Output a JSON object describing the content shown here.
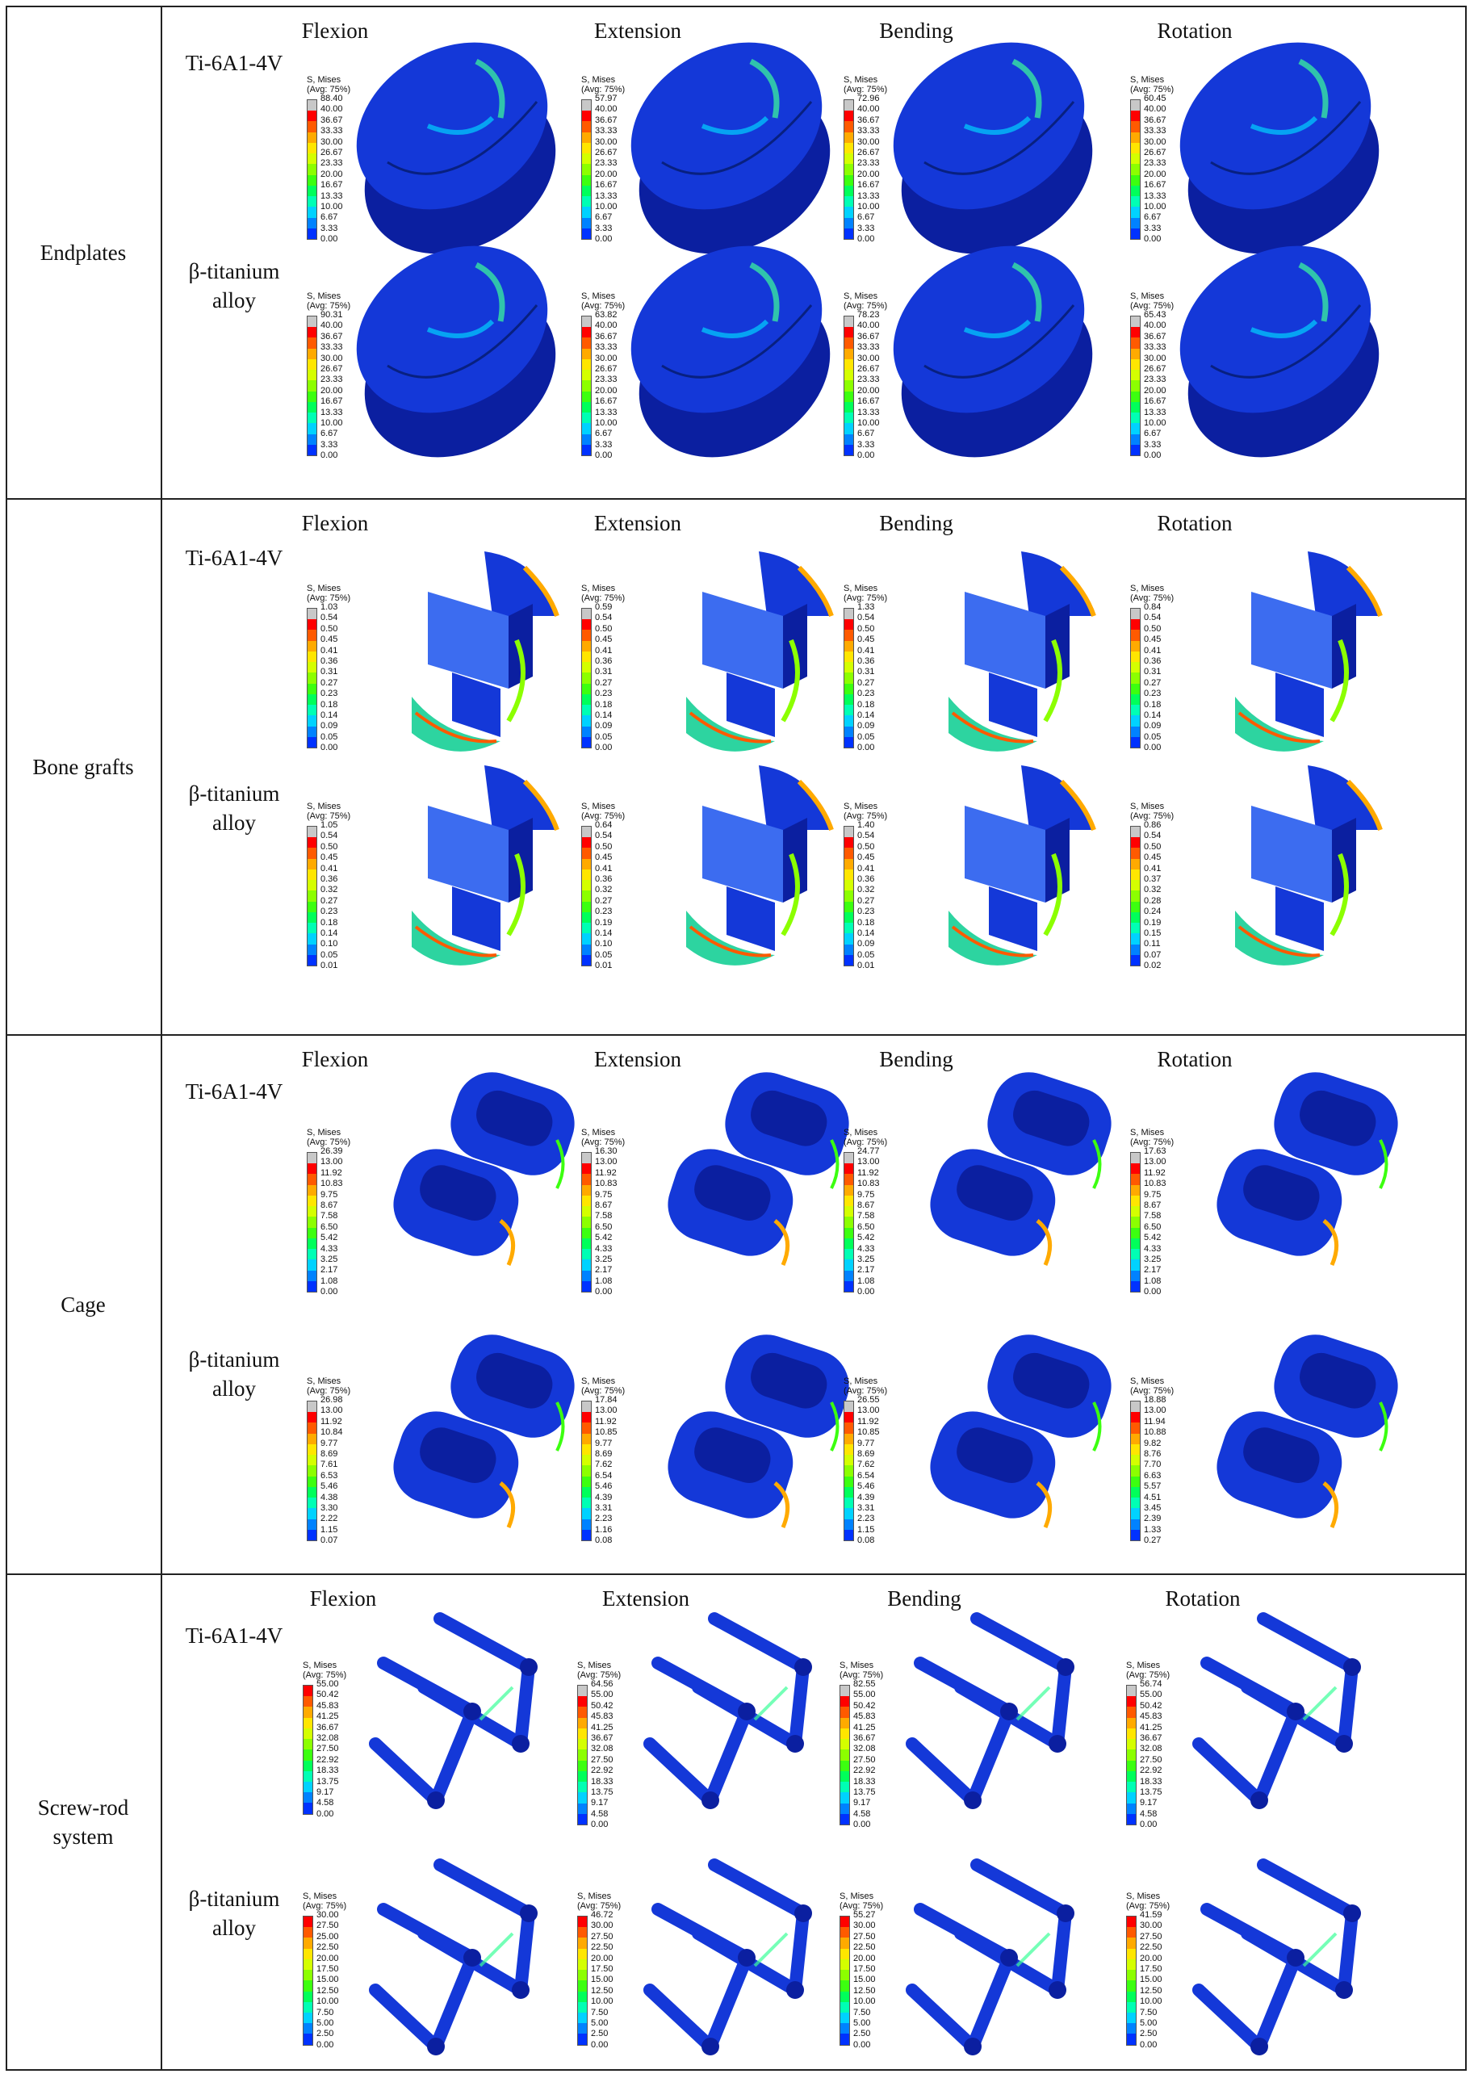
{
  "legend_title": [
    "S, Mises",
    "(Avg: 75%)"
  ],
  "columns": [
    "Flexion",
    "Extension",
    "Bending",
    "Rotation"
  ],
  "sections": [
    {
      "name": "Endplates",
      "rows": [
        {
          "material": [
            "Ti-6A1-4V"
          ],
          "scales": [
            [
              "88.40",
              "40.00",
              "36.67",
              "33.33",
              "30.00",
              "26.67",
              "23.33",
              "20.00",
              "16.67",
              "13.33",
              "10.00",
              "6.67",
              "3.33",
              "0.00"
            ],
            [
              "57.97",
              "40.00",
              "36.67",
              "33.33",
              "30.00",
              "26.67",
              "23.33",
              "20.00",
              "16.67",
              "13.33",
              "10.00",
              "6.67",
              "3.33",
              "0.00"
            ],
            [
              "72.96",
              "40.00",
              "36.67",
              "33.33",
              "30.00",
              "26.67",
              "23.33",
              "20.00",
              "16.67",
              "13.33",
              "10.00",
              "6.67",
              "3.33",
              "0.00"
            ],
            [
              "60.45",
              "40.00",
              "36.67",
              "33.33",
              "30.00",
              "26.67",
              "23.33",
              "20.00",
              "16.67",
              "13.33",
              "10.00",
              "6.67",
              "3.33",
              "0.00"
            ]
          ]
        },
        {
          "material": [
            "β-titanium",
            "alloy"
          ],
          "scales": [
            [
              "90.31",
              "40.00",
              "36.67",
              "33.33",
              "30.00",
              "26.67",
              "23.33",
              "20.00",
              "16.67",
              "13.33",
              "10.00",
              "6.67",
              "3.33",
              "0.00"
            ],
            [
              "63.82",
              "40.00",
              "36.67",
              "33.33",
              "30.00",
              "26.67",
              "23.33",
              "20.00",
              "16.67",
              "13.33",
              "10.00",
              "6.67",
              "3.33",
              "0.00"
            ],
            [
              "78.23",
              "40.00",
              "36.67",
              "33.33",
              "30.00",
              "26.67",
              "23.33",
              "20.00",
              "16.67",
              "13.33",
              "10.00",
              "6.67",
              "3.33",
              "0.00"
            ],
            [
              "65.43",
              "40.00",
              "36.67",
              "33.33",
              "30.00",
              "26.67",
              "23.33",
              "20.00",
              "16.67",
              "13.33",
              "10.00",
              "6.67",
              "3.33",
              "0.00"
            ]
          ]
        }
      ]
    },
    {
      "name": "Bone grafts",
      "rows": [
        {
          "material": [
            "Ti-6A1-4V"
          ],
          "scales": [
            [
              "1.03",
              "0.54",
              "0.50",
              "0.45",
              "0.41",
              "0.36",
              "0.31",
              "0.27",
              "0.23",
              "0.18",
              "0.14",
              "0.09",
              "0.05",
              "0.00"
            ],
            [
              "0.59",
              "0.54",
              "0.50",
              "0.45",
              "0.41",
              "0.36",
              "0.31",
              "0.27",
              "0.23",
              "0.18",
              "0.14",
              "0.09",
              "0.05",
              "0.00"
            ],
            [
              "1.33",
              "0.54",
              "0.50",
              "0.45",
              "0.41",
              "0.36",
              "0.31",
              "0.27",
              "0.23",
              "0.18",
              "0.14",
              "0.09",
              "0.05",
              "0.00"
            ],
            [
              "0.84",
              "0.54",
              "0.50",
              "0.45",
              "0.41",
              "0.36",
              "0.31",
              "0.27",
              "0.23",
              "0.18",
              "0.14",
              "0.09",
              "0.05",
              "0.00"
            ]
          ]
        },
        {
          "material": [
            "β-titanium",
            "alloy"
          ],
          "scales": [
            [
              "1.05",
              "0.54",
              "0.50",
              "0.45",
              "0.41",
              "0.36",
              "0.32",
              "0.27",
              "0.23",
              "0.18",
              "0.14",
              "0.10",
              "0.05",
              "0.01"
            ],
            [
              "0.64",
              "0.54",
              "0.50",
              "0.45",
              "0.41",
              "0.36",
              "0.32",
              "0.27",
              "0.23",
              "0.19",
              "0.14",
              "0.10",
              "0.05",
              "0.01"
            ],
            [
              "1.40",
              "0.54",
              "0.50",
              "0.45",
              "0.41",
              "0.36",
              "0.32",
              "0.27",
              "0.23",
              "0.18",
              "0.14",
              "0.09",
              "0.05",
              "0.01"
            ],
            [
              "0.86",
              "0.54",
              "0.50",
              "0.45",
              "0.41",
              "0.37",
              "0.32",
              "0.28",
              "0.24",
              "0.19",
              "0.15",
              "0.11",
              "0.07",
              "0.02"
            ]
          ]
        }
      ]
    },
    {
      "name": "Cage",
      "rows": [
        {
          "material": [
            "Ti-6A1-4V"
          ],
          "scales": [
            [
              "26.39",
              "13.00",
              "11.92",
              "10.83",
              "9.75",
              "8.67",
              "7.58",
              "6.50",
              "5.42",
              "4.33",
              "3.25",
              "2.17",
              "1.08",
              "0.00"
            ],
            [
              "16.30",
              "13.00",
              "11.92",
              "10.83",
              "9.75",
              "8.67",
              "7.58",
              "6.50",
              "5.42",
              "4.33",
              "3.25",
              "2.17",
              "1.08",
              "0.00"
            ],
            [
              "24.77",
              "13.00",
              "11.92",
              "10.83",
              "9.75",
              "8.67",
              "7.58",
              "6.50",
              "5.42",
              "4.33",
              "3.25",
              "2.17",
              "1.08",
              "0.00"
            ],
            [
              "17.63",
              "13.00",
              "11.92",
              "10.83",
              "9.75",
              "8.67",
              "7.58",
              "6.50",
              "5.42",
              "4.33",
              "3.25",
              "2.17",
              "1.08",
              "0.00"
            ]
          ]
        },
        {
          "material": [
            "β-titanium",
            "alloy"
          ],
          "scales": [
            [
              "26.98",
              "13.00",
              "11.92",
              "10.84",
              "9.77",
              "8.69",
              "7.61",
              "6.53",
              "5.46",
              "4.38",
              "3.30",
              "2.22",
              "1.15",
              "0.07"
            ],
            [
              "17.84",
              "13.00",
              "11.92",
              "10.85",
              "9.77",
              "8.69",
              "7.62",
              "6.54",
              "5.46",
              "4.39",
              "3.31",
              "2.23",
              "1.16",
              "0.08"
            ],
            [
              "26.55",
              "13.00",
              "11.92",
              "10.85",
              "9.77",
              "8.69",
              "7.62",
              "6.54",
              "5.46",
              "4.39",
              "3.31",
              "2.23",
              "1.15",
              "0.08"
            ],
            [
              "18.88",
              "13.00",
              "11.94",
              "10.88",
              "9.82",
              "8.76",
              "7.70",
              "6.63",
              "5.57",
              "4.51",
              "3.45",
              "2.39",
              "1.33",
              "0.27"
            ]
          ]
        }
      ]
    },
    {
      "name": "Screw-rod\nsystem",
      "rows": [
        {
          "material": [
            "Ti-6A1-4V"
          ],
          "scales": [
            [
              "55.00",
              "50.42",
              "45.83",
              "41.25",
              "36.67",
              "32.08",
              "27.50",
              "22.92",
              "18.33",
              "13.75",
              "9.17",
              "4.58",
              "0.00"
            ],
            [
              "64.56",
              "55.00",
              "50.42",
              "45.83",
              "41.25",
              "36.67",
              "32.08",
              "27.50",
              "22.92",
              "18.33",
              "13.75",
              "9.17",
              "4.58",
              "0.00"
            ],
            [
              "82.55",
              "55.00",
              "50.42",
              "45.83",
              "41.25",
              "36.67",
              "32.08",
              "27.50",
              "22.92",
              "18.33",
              "13.75",
              "9.17",
              "4.58",
              "0.00"
            ],
            [
              "56.74",
              "55.00",
              "50.42",
              "45.83",
              "41.25",
              "36.67",
              "32.08",
              "27.50",
              "22.92",
              "18.33",
              "13.75",
              "9.17",
              "4.58",
              "0.00"
            ]
          ]
        },
        {
          "material": [
            "β-titanium",
            "alloy"
          ],
          "scales": [
            [
              "30.00",
              "27.50",
              "25.00",
              "22.50",
              "20.00",
              "17.50",
              "15.00",
              "12.50",
              "10.00",
              "7.50",
              "5.00",
              "2.50",
              "0.00"
            ],
            [
              "46.72",
              "30.00",
              "27.50",
              "22.50",
              "20.00",
              "17.50",
              "15.00",
              "12.50",
              "10.00",
              "7.50",
              "5.00",
              "2.50",
              "0.00"
            ],
            [
              "55.27",
              "30.00",
              "27.50",
              "22.50",
              "20.00",
              "17.50",
              "15.00",
              "12.50",
              "10.00",
              "7.50",
              "5.00",
              "2.50",
              "0.00"
            ],
            [
              "41.59",
              "30.00",
              "27.50",
              "22.50",
              "20.00",
              "17.50",
              "15.00",
              "12.50",
              "10.00",
              "7.50",
              "5.00",
              "2.50",
              "0.00"
            ]
          ]
        }
      ]
    }
  ],
  "colors": {
    "scale": [
      "#c8c8c8",
      "#ff0000",
      "#ff5a00",
      "#ffaa00",
      "#ffe600",
      "#d4ff00",
      "#8cff00",
      "#3cff10",
      "#00ff5a",
      "#00ffb4",
      "#00d2ff",
      "#0082ff",
      "#0032ff",
      "#0000c8"
    ],
    "model_base": "#1438d8",
    "model_dark": "#0b1fa0",
    "model_light": "#3c6cf0"
  }
}
